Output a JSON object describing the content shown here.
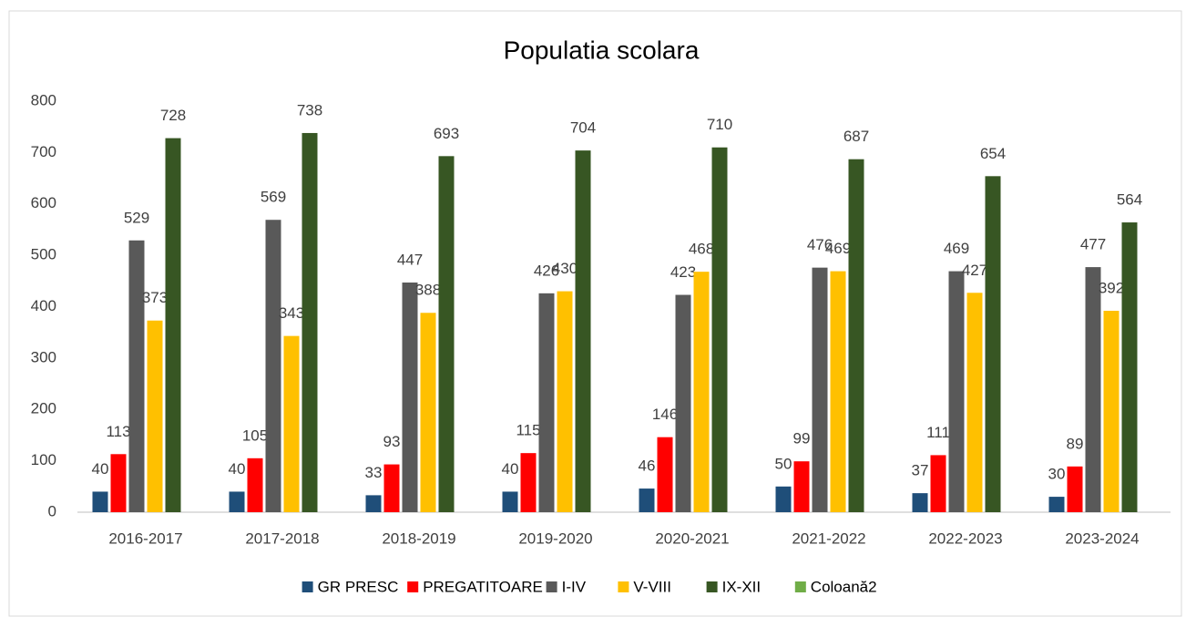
{
  "chart_data": {
    "type": "bar",
    "title": "Populatia scolara",
    "categories": [
      "2016-2017",
      "2017-2018",
      "2018-2019",
      "2019-2020",
      "2020-2021",
      "2021-2022",
      "2022-2023",
      "2023-2024"
    ],
    "series": [
      {
        "name": "GR PRESC",
        "color": "#1f4e79",
        "values": [
          40,
          40,
          33,
          40,
          46,
          50,
          37,
          30
        ]
      },
      {
        "name": "PREGATITOARE",
        "color": "#ff0000",
        "values": [
          113,
          105,
          93,
          115,
          146,
          99,
          111,
          89
        ]
      },
      {
        "name": "I-IV",
        "color": "#595959",
        "values": [
          529,
          569,
          447,
          426,
          423,
          476,
          469,
          477
        ]
      },
      {
        "name": "V-VIII",
        "color": "#ffc000",
        "values": [
          373,
          343,
          388,
          430,
          468,
          469,
          427,
          392
        ]
      },
      {
        "name": "IX-XII",
        "color": "#375623",
        "values": [
          728,
          738,
          693,
          704,
          710,
          687,
          654,
          564
        ]
      },
      {
        "name": "Coloană2",
        "color": "#70ad47",
        "values": [
          null,
          null,
          null,
          null,
          null,
          null,
          null,
          null
        ]
      }
    ],
    "ylim": [
      0,
      800
    ],
    "yticks": [
      0,
      100,
      200,
      300,
      400,
      500,
      600,
      700,
      800
    ],
    "grid": false,
    "legend": "bottom"
  }
}
